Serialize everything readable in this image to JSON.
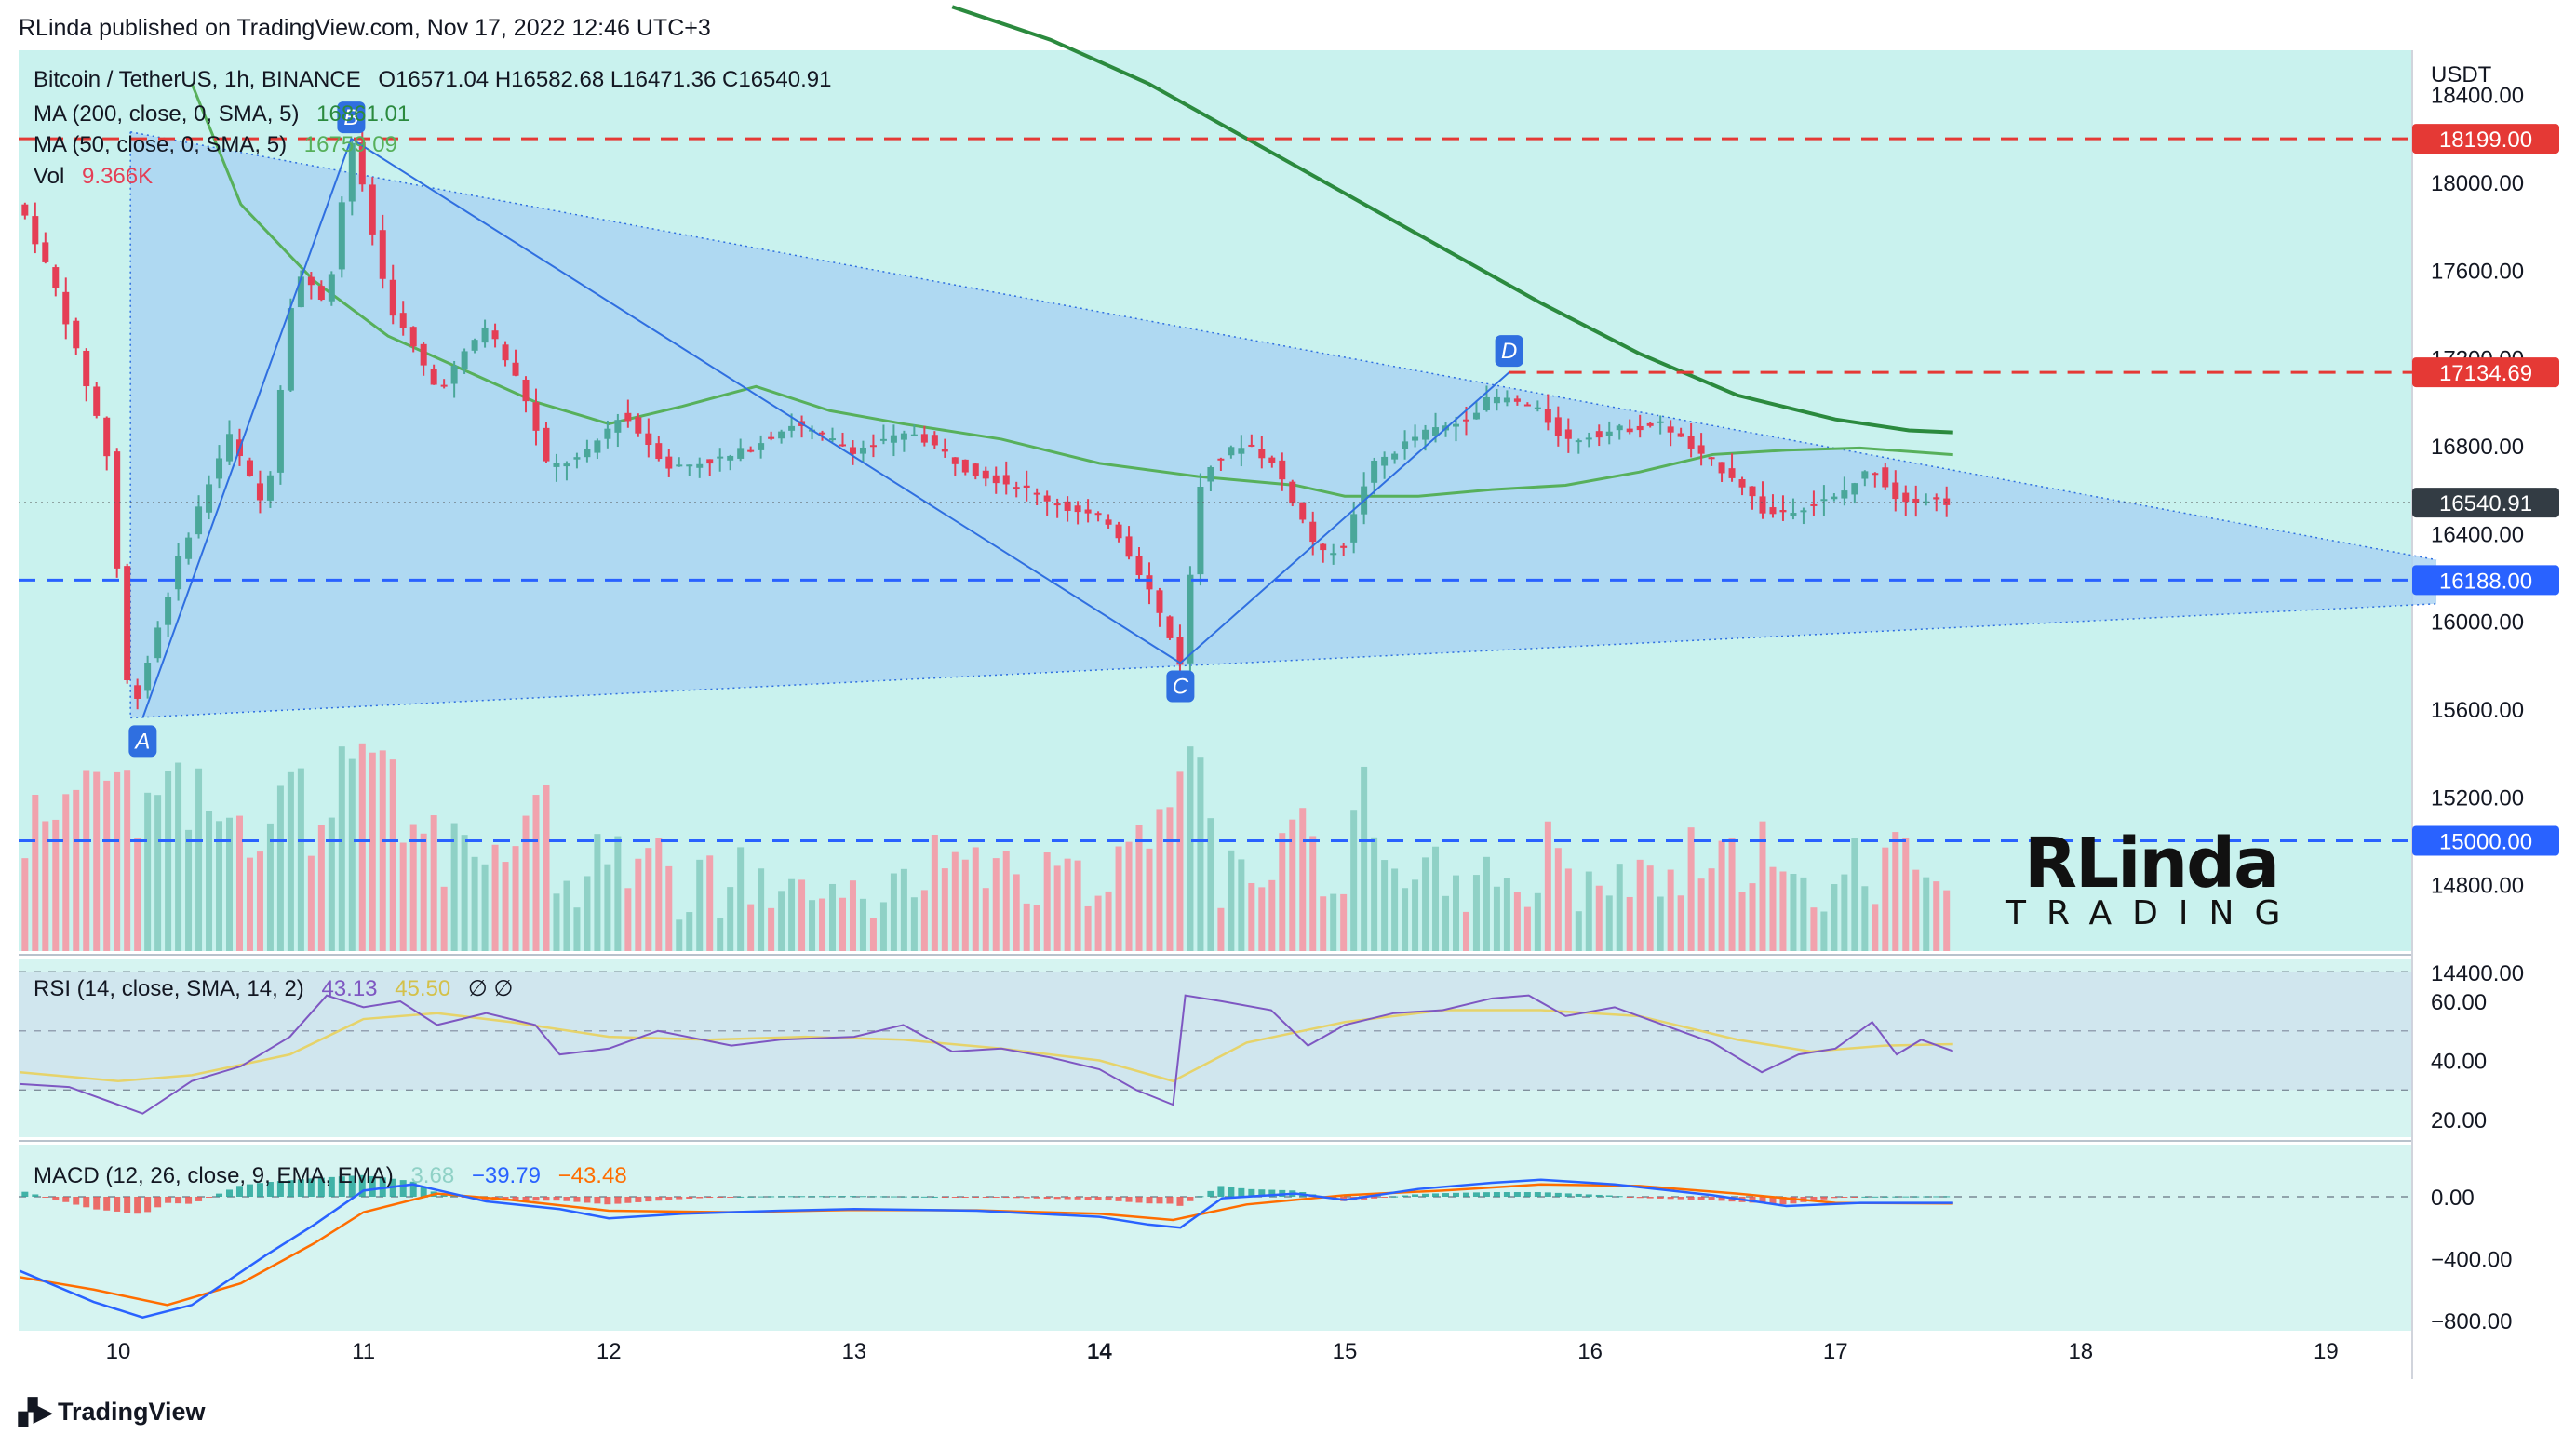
{
  "header": "RLinda published on TradingView.com, Nov 17, 2022 12:46 UTC+3",
  "footer": {
    "brand": "TradingView"
  },
  "watermark": {
    "big": "RLinda",
    "small": "TRADING"
  },
  "legend": {
    "symbol": "Bitcoin / TetherUS, 1h, BINANCE",
    "ohlc": "O16571.04  H16582.68  L16471.36  C16540.91",
    "ma200_label": "MA (200, close, 0, SMA, 5)",
    "ma200_value": "16861.01",
    "ma50_label": "MA (50, close, 0, SMA, 5)",
    "ma50_value": "16759.09",
    "vol_label": "Vol",
    "vol_value": "9.366K",
    "rsi_label": "RSI (14, close, SMA, 14, 2)",
    "rsi_value": "43.13",
    "rsi_ma_value": "45.50",
    "rsi_extra": "∅  ∅",
    "macd_label": "MACD (12, 26, close, 9, EMA, EMA)",
    "macd_hist": "3.68",
    "macd_value": "−39.79",
    "macd_signal": "−43.48"
  },
  "colors": {
    "bg_main": "#c9f2ee",
    "bg_osc": "#d6f4f1",
    "triangle": "#a9d2f2",
    "up": "#4aa79a",
    "down": "#e53e55",
    "vol_up": "#8fd1c6",
    "vol_down": "#f1a2ad",
    "ma50": "#57b05b",
    "ma200": "#2b8a3e",
    "rsi": "#7e57c2",
    "rsi_ma": "#e6d36a",
    "macd": "#2962ff",
    "signal": "#ff6d00",
    "resistance": "#e53935",
    "support": "#2962ff",
    "pattern": "#2f6fe0"
  },
  "chart_data": [
    {
      "type": "candlestick",
      "title": "Bitcoin / TetherUS, 1h, BINANCE",
      "ylabel": "USDT",
      "ylim": [
        14100,
        18800
      ],
      "x_ticks": [
        "10",
        "11",
        "12",
        "13",
        "14",
        "15",
        "16",
        "17",
        "18",
        "19"
      ],
      "y_ticks": [
        "18400.00",
        "18000.00",
        "17600.00",
        "17200.00",
        "16800.00",
        "16400.00",
        "16000.00",
        "15600.00",
        "15200.00",
        "14800.00",
        "14400.00"
      ],
      "price_tags": [
        "18199.00",
        "17134.69",
        "16540.91",
        "16188.00",
        "15000.00"
      ],
      "last_price": 16540.91,
      "levels": [
        {
          "value": 18199.0,
          "label": "18199.00",
          "role": "resistance"
        },
        {
          "value": 17134.69,
          "label": "17134.69",
          "role": "resistance"
        },
        {
          "value": 16188.0,
          "label": "16188.00",
          "role": "support"
        },
        {
          "value": 15000.0,
          "label": "15000.00",
          "role": "support"
        }
      ],
      "pattern_points": [
        {
          "label": "A",
          "day": 10.1,
          "price": 15560
        },
        {
          "label": "B",
          "day": 10.95,
          "price": 18199
        },
        {
          "label": "C",
          "day": 14.33,
          "price": 15810
        },
        {
          "label": "D",
          "day": 15.67,
          "price": 17134.69
        }
      ],
      "triangle": {
        "upper": [
          {
            "day": 10.05,
            "price": 18230
          },
          {
            "day": 19.45,
            "price": 16280
          }
        ],
        "lower": [
          {
            "day": 10.05,
            "price": 15560
          },
          {
            "day": 19.45,
            "price": 16080
          }
        ]
      },
      "price_path": [
        [
          9.6,
          17900
        ],
        [
          9.75,
          17500
        ],
        [
          9.95,
          16800
        ],
        [
          10.05,
          15560
        ],
        [
          10.25,
          16300
        ],
        [
          10.45,
          16850
        ],
        [
          10.6,
          16500
        ],
        [
          10.72,
          17600
        ],
        [
          10.85,
          17450
        ],
        [
          10.95,
          18199
        ],
        [
          11.1,
          17450
        ],
        [
          11.3,
          17050
        ],
        [
          11.5,
          17350
        ],
        [
          11.65,
          17050
        ],
        [
          11.75,
          16700
        ],
        [
          11.9,
          16750
        ],
        [
          12.05,
          16950
        ],
        [
          12.25,
          16700
        ],
        [
          12.5,
          16750
        ],
        [
          12.75,
          16900
        ],
        [
          13.0,
          16780
        ],
        [
          13.25,
          16860
        ],
        [
          13.45,
          16700
        ],
        [
          13.7,
          16600
        ],
        [
          13.9,
          16500
        ],
        [
          14.05,
          16450
        ],
        [
          14.2,
          16150
        ],
        [
          14.33,
          15810
        ],
        [
          14.42,
          16700
        ],
        [
          14.6,
          16820
        ],
        [
          14.72,
          16700
        ],
        [
          14.9,
          16300
        ],
        [
          15.0,
          16350
        ],
        [
          15.1,
          16700
        ],
        [
          15.3,
          16850
        ],
        [
          15.45,
          16900
        ],
        [
          15.6,
          17020
        ],
        [
          15.7,
          17000
        ],
        [
          15.8,
          16950
        ],
        [
          15.9,
          16820
        ],
        [
          16.0,
          16850
        ],
        [
          16.15,
          16880
        ],
        [
          16.3,
          16900
        ],
        [
          16.45,
          16750
        ],
        [
          16.6,
          16650
        ],
        [
          16.72,
          16480
        ],
        [
          16.85,
          16520
        ],
        [
          17.0,
          16560
        ],
        [
          17.15,
          16700
        ],
        [
          17.25,
          16560
        ],
        [
          17.35,
          16560
        ],
        [
          17.48,
          16540.91
        ]
      ],
      "series": [
        {
          "name": "MA (200, close, 0, SMA, 5)",
          "last": 16861.01,
          "points": [
            [
              13.4,
              18800
            ],
            [
              13.8,
              18650
            ],
            [
              14.2,
              18450
            ],
            [
              14.6,
              18200
            ],
            [
              15.0,
              17950
            ],
            [
              15.4,
              17700
            ],
            [
              15.8,
              17450
            ],
            [
              16.2,
              17220
            ],
            [
              16.6,
              17030
            ],
            [
              17.0,
              16920
            ],
            [
              17.3,
              16870
            ],
            [
              17.48,
              16861.01
            ]
          ]
        },
        {
          "name": "MA (50, close, 0, SMA, 5)",
          "last": 16759.09,
          "points": [
            [
              10.3,
              18450
            ],
            [
              10.5,
              17900
            ],
            [
              10.8,
              17550
            ],
            [
              11.1,
              17300
            ],
            [
              11.4,
              17150
            ],
            [
              11.7,
              17000
            ],
            [
              12.0,
              16900
            ],
            [
              12.3,
              16980
            ],
            [
              12.6,
              17070
            ],
            [
              12.9,
              16960
            ],
            [
              13.2,
              16900
            ],
            [
              13.6,
              16830
            ],
            [
              14.0,
              16720
            ],
            [
              14.4,
              16660
            ],
            [
              14.8,
              16620
            ],
            [
              15.0,
              16570
            ],
            [
              15.3,
              16570
            ],
            [
              15.6,
              16600
            ],
            [
              15.9,
              16620
            ],
            [
              16.2,
              16680
            ],
            [
              16.5,
              16760
            ],
            [
              16.8,
              16780
            ],
            [
              17.1,
              16790
            ],
            [
              17.48,
              16759.09
            ]
          ]
        }
      ]
    },
    {
      "type": "bar",
      "title": "Vol",
      "last": "9.366K",
      "description_values_relative": true
    },
    {
      "type": "line",
      "title": "RSI (14, close, SMA, 14, 2)",
      "ylim": [
        10,
        75
      ],
      "y_ticks": [
        "60.00",
        "40.00",
        "20.00"
      ],
      "bands": [
        70,
        50,
        30
      ],
      "series": [
        {
          "name": "RSI",
          "last": 43.13,
          "points": [
            [
              9.6,
              32
            ],
            [
              9.8,
              31
            ],
            [
              10.0,
              25
            ],
            [
              10.1,
              22
            ],
            [
              10.3,
              33
            ],
            [
              10.5,
              38
            ],
            [
              10.7,
              48
            ],
            [
              10.85,
              62
            ],
            [
              11.0,
              58
            ],
            [
              11.15,
              60
            ],
            [
              11.3,
              52
            ],
            [
              11.5,
              56
            ],
            [
              11.7,
              52
            ],
            [
              11.8,
              42
            ],
            [
              12.0,
              44
            ],
            [
              12.2,
              50
            ],
            [
              12.5,
              45
            ],
            [
              12.7,
              47
            ],
            [
              13.0,
              48
            ],
            [
              13.2,
              52
            ],
            [
              13.4,
              43
            ],
            [
              13.6,
              44
            ],
            [
              13.8,
              41
            ],
            [
              14.0,
              37
            ],
            [
              14.15,
              30
            ],
            [
              14.3,
              25
            ],
            [
              14.35,
              62
            ],
            [
              14.5,
              60
            ],
            [
              14.7,
              57
            ],
            [
              14.85,
              45
            ],
            [
              15.0,
              52
            ],
            [
              15.2,
              56
            ],
            [
              15.4,
              57
            ],
            [
              15.6,
              61
            ],
            [
              15.75,
              62
            ],
            [
              15.9,
              55
            ],
            [
              16.1,
              58
            ],
            [
              16.3,
              52
            ],
            [
              16.5,
              46
            ],
            [
              16.7,
              36
            ],
            [
              16.85,
              42
            ],
            [
              17.0,
              44
            ],
            [
              17.15,
              53
            ],
            [
              17.25,
              42
            ],
            [
              17.35,
              47
            ],
            [
              17.48,
              43.13
            ]
          ]
        },
        {
          "name": "RSI MA",
          "last": 45.5,
          "points": [
            [
              9.6,
              36
            ],
            [
              10.0,
              33
            ],
            [
              10.3,
              35
            ],
            [
              10.7,
              42
            ],
            [
              11.0,
              54
            ],
            [
              11.3,
              56
            ],
            [
              11.6,
              53
            ],
            [
              12.0,
              48
            ],
            [
              12.4,
              47
            ],
            [
              12.8,
              48
            ],
            [
              13.2,
              47
            ],
            [
              13.6,
              44
            ],
            [
              14.0,
              40
            ],
            [
              14.3,
              33
            ],
            [
              14.6,
              46
            ],
            [
              15.0,
              53
            ],
            [
              15.4,
              57
            ],
            [
              15.8,
              57
            ],
            [
              16.2,
              55
            ],
            [
              16.6,
              47
            ],
            [
              16.9,
              43
            ],
            [
              17.2,
              45
            ],
            [
              17.48,
              45.5
            ]
          ]
        }
      ]
    },
    {
      "type": "line",
      "title": "MACD (12, 26, close, 9, EMA, EMA)",
      "ylim": [
        -900,
        180
      ],
      "y_ticks": [
        "0.00",
        "−400.00",
        "−800.00"
      ],
      "series": [
        {
          "name": "MACD",
          "last": -39.79,
          "points": [
            [
              9.6,
              -480
            ],
            [
              9.9,
              -680
            ],
            [
              10.1,
              -780
            ],
            [
              10.3,
              -700
            ],
            [
              10.6,
              -380
            ],
            [
              10.8,
              -180
            ],
            [
              11.0,
              40
            ],
            [
              11.2,
              80
            ],
            [
              11.5,
              -30
            ],
            [
              11.8,
              -80
            ],
            [
              12.0,
              -140
            ],
            [
              12.3,
              -110
            ],
            [
              12.7,
              -90
            ],
            [
              13.0,
              -80
            ],
            [
              13.5,
              -90
            ],
            [
              14.0,
              -130
            ],
            [
              14.2,
              -180
            ],
            [
              14.33,
              -200
            ],
            [
              14.5,
              -10
            ],
            [
              14.8,
              20
            ],
            [
              15.0,
              -20
            ],
            [
              15.3,
              50
            ],
            [
              15.6,
              90
            ],
            [
              15.8,
              110
            ],
            [
              16.1,
              80
            ],
            [
              16.5,
              10
            ],
            [
              16.8,
              -60
            ],
            [
              17.1,
              -40
            ],
            [
              17.48,
              -39.79
            ]
          ]
        },
        {
          "name": "Signal",
          "last": -43.48,
          "points": [
            [
              9.6,
              -520
            ],
            [
              9.9,
              -600
            ],
            [
              10.2,
              -700
            ],
            [
              10.5,
              -560
            ],
            [
              10.8,
              -300
            ],
            [
              11.0,
              -100
            ],
            [
              11.3,
              20
            ],
            [
              11.6,
              -20
            ],
            [
              12.0,
              -90
            ],
            [
              12.5,
              -100
            ],
            [
              13.0,
              -85
            ],
            [
              13.5,
              -88
            ],
            [
              14.0,
              -110
            ],
            [
              14.3,
              -150
            ],
            [
              14.6,
              -50
            ],
            [
              15.0,
              10
            ],
            [
              15.4,
              40
            ],
            [
              15.8,
              80
            ],
            [
              16.2,
              70
            ],
            [
              16.6,
              20
            ],
            [
              17.0,
              -40
            ],
            [
              17.48,
              -43.48
            ]
          ]
        }
      ]
    }
  ]
}
